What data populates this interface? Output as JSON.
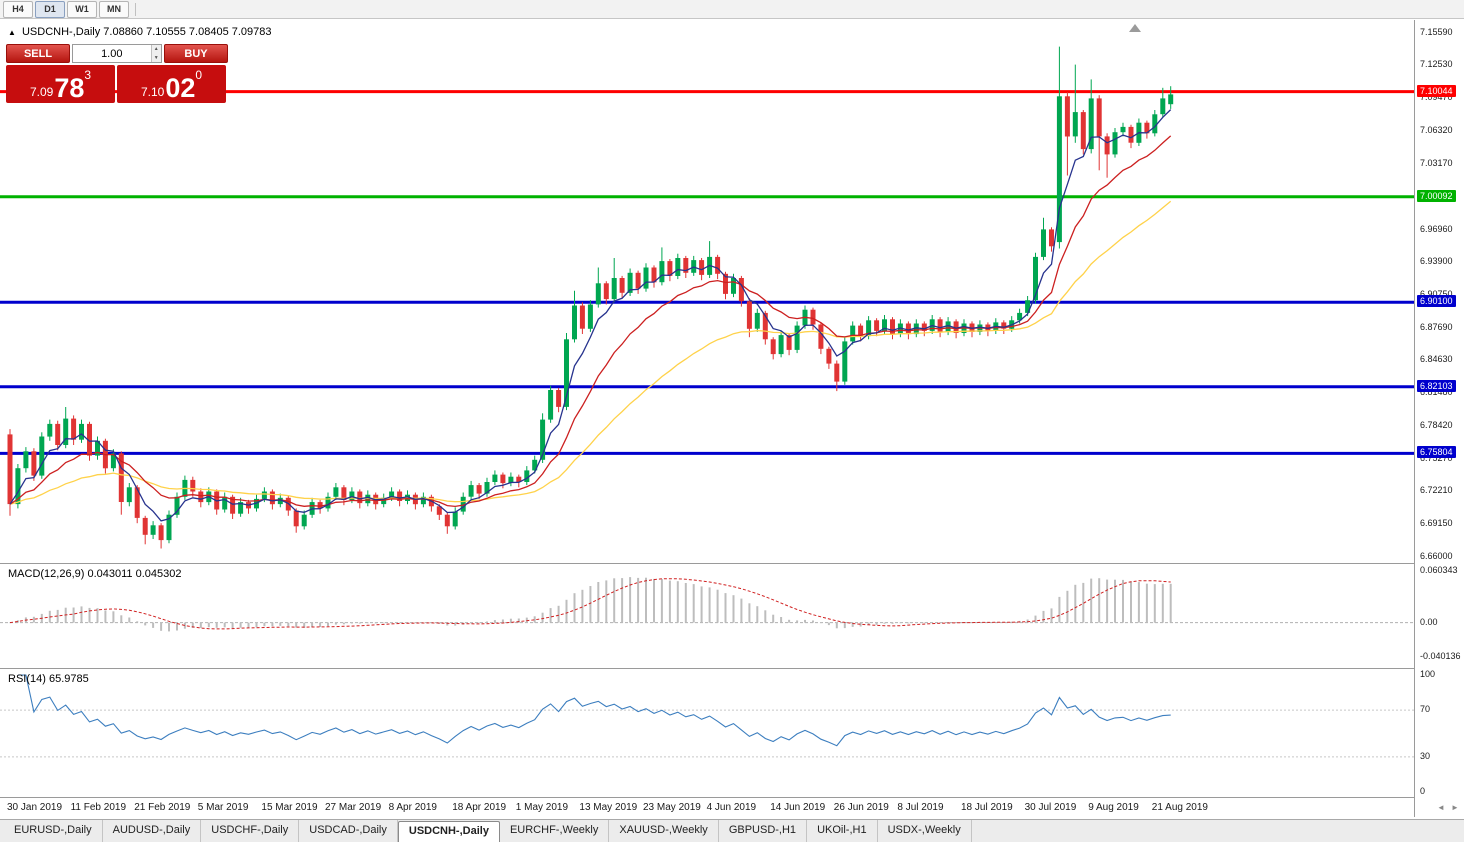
{
  "window": {
    "timeframes": [
      "H4",
      "D1",
      "W1",
      "MN"
    ],
    "active_timeframe": "D1"
  },
  "chart": {
    "marker": "▲",
    "symbol_title": "USDCNH-,Daily",
    "ohlc_text": "7.08860 7.10555 7.08405 7.09783"
  },
  "one_click": {
    "sell_label": "SELL",
    "buy_label": "BUY",
    "volume": "1.00",
    "spin_up": "▲",
    "spin_down": "▼",
    "sell_price": {
      "main": "7.09",
      "big": "78",
      "sup": "3"
    },
    "buy_price": {
      "main": "7.10",
      "big": "02",
      "sup": "0"
    }
  },
  "price_axis": {
    "max": 7.1559,
    "min": 6.66,
    "ticks": [
      "7.15590",
      "7.12530",
      "7.09470",
      "7.06320",
      "7.03170",
      "6.96960",
      "6.93900",
      "6.90750",
      "6.87690",
      "6.84630",
      "6.81480",
      "6.78420",
      "6.75270",
      "6.72210",
      "6.69150",
      "6.66000"
    ]
  },
  "levels": [
    {
      "value": 7.10044,
      "label": "7.10044",
      "color": "#fe0000"
    },
    {
      "value": 7.00092,
      "label": "7.00092",
      "color": "#00b200"
    },
    {
      "value": 6.901,
      "label": "6.90100",
      "color": "#0000cd"
    },
    {
      "value": 6.82103,
      "label": "6.82103",
      "color": "#0000cd"
    },
    {
      "value": 6.75804,
      "label": "6.75804",
      "color": "#0000cd"
    }
  ],
  "chart_data": {
    "type": "candlestick",
    "title": "USDCNH-,Daily",
    "symbol": "USDCNH",
    "timeframe": "Daily",
    "x_label_step": 8,
    "x_labels": [
      "30 Jan 2019",
      "11 Feb 2019",
      "21 Feb 2019",
      "5 Mar 2019",
      "15 Mar 2019",
      "27 Mar 2019",
      "8 Apr 2019",
      "18 Apr 2019",
      "1 May 2019",
      "13 May 2019",
      "23 May 2019",
      "4 Jun 2019",
      "14 Jun 2019",
      "26 Jun 2019",
      "8 Jul 2019",
      "18 Jul 2019",
      "30 Jul 2019",
      "9 Aug 2019",
      "21 Aug 2019"
    ],
    "colors": {
      "up": "#00a651",
      "down": "#e03434",
      "ma_fast": "#27338e",
      "ma_mid": "#cc2020",
      "ma_slow": "#ffd24a"
    },
    "ma_periods": {
      "fast": 5,
      "mid": 13,
      "slow": 34
    },
    "candles": [
      [
        6.776,
        6.781,
        6.699,
        6.71
      ],
      [
        6.71,
        6.748,
        6.706,
        6.744
      ],
      [
        6.744,
        6.764,
        6.74,
        6.76
      ],
      [
        6.76,
        6.763,
        6.732,
        6.737
      ],
      [
        6.737,
        6.778,
        6.734,
        6.774
      ],
      [
        6.774,
        6.79,
        6.77,
        6.786
      ],
      [
        6.786,
        6.789,
        6.761,
        6.766
      ],
      [
        6.766,
        6.802,
        6.763,
        6.791
      ],
      [
        6.791,
        6.794,
        6.766,
        6.771
      ],
      [
        6.771,
        6.79,
        6.768,
        6.786
      ],
      [
        6.786,
        6.788,
        6.751,
        6.756
      ],
      [
        6.756,
        6.774,
        6.752,
        6.77
      ],
      [
        6.77,
        6.772,
        6.739,
        6.744
      ],
      [
        6.744,
        6.762,
        6.741,
        6.758
      ],
      [
        6.758,
        6.76,
        6.7,
        6.712
      ],
      [
        6.712,
        6.73,
        6.708,
        6.726
      ],
      [
        6.726,
        6.728,
        6.692,
        6.697
      ],
      [
        6.697,
        6.699,
        6.672,
        6.681
      ],
      [
        6.681,
        6.694,
        6.677,
        6.69
      ],
      [
        6.69,
        6.692,
        6.668,
        6.676
      ],
      [
        6.676,
        6.704,
        6.673,
        6.7
      ],
      [
        6.7,
        6.721,
        6.697,
        6.717
      ],
      [
        6.717,
        6.737,
        6.714,
        6.733
      ],
      [
        6.733,
        6.736,
        6.717,
        6.722
      ],
      [
        6.722,
        6.725,
        6.707,
        6.712
      ],
      [
        6.712,
        6.726,
        6.709,
        6.722
      ],
      [
        6.722,
        6.724,
        6.7,
        6.705
      ],
      [
        6.705,
        6.721,
        6.702,
        6.717
      ],
      [
        6.717,
        6.719,
        6.696,
        6.701
      ],
      [
        6.701,
        6.716,
        6.698,
        6.712
      ],
      [
        6.712,
        6.714,
        6.701,
        6.706
      ],
      [
        6.706,
        6.719,
        6.703,
        6.715
      ],
      [
        6.715,
        6.726,
        6.712,
        6.722
      ],
      [
        6.722,
        6.724,
        6.705,
        6.71
      ],
      [
        6.71,
        6.72,
        6.707,
        6.716
      ],
      [
        6.716,
        6.718,
        6.699,
        6.704
      ],
      [
        6.704,
        6.706,
        6.683,
        6.689
      ],
      [
        6.689,
        6.704,
        6.686,
        6.7
      ],
      [
        6.7,
        6.716,
        6.697,
        6.712
      ],
      [
        6.712,
        6.714,
        6.701,
        6.706
      ],
      [
        6.706,
        6.721,
        6.703,
        6.717
      ],
      [
        6.717,
        6.73,
        6.714,
        6.726
      ],
      [
        6.726,
        6.728,
        6.709,
        6.714
      ],
      [
        6.714,
        6.726,
        6.711,
        6.722
      ],
      [
        6.722,
        6.724,
        6.706,
        6.711
      ],
      [
        6.711,
        6.723,
        6.708,
        6.719
      ],
      [
        6.719,
        6.721,
        6.705,
        6.71
      ],
      [
        6.71,
        6.72,
        6.707,
        6.716
      ],
      [
        6.716,
        6.726,
        6.713,
        6.722
      ],
      [
        6.722,
        6.724,
        6.708,
        6.713
      ],
      [
        6.713,
        6.723,
        6.71,
        6.719
      ],
      [
        6.719,
        6.721,
        6.705,
        6.71
      ],
      [
        6.71,
        6.721,
        6.707,
        6.717
      ],
      [
        6.717,
        6.719,
        6.703,
        6.708
      ],
      [
        6.708,
        6.71,
        6.695,
        6.7
      ],
      [
        6.7,
        6.702,
        6.682,
        6.689
      ],
      [
        6.689,
        6.707,
        6.686,
        6.703
      ],
      [
        6.703,
        6.721,
        6.7,
        6.717
      ],
      [
        6.717,
        6.732,
        6.714,
        6.728
      ],
      [
        6.728,
        6.73,
        6.715,
        6.72
      ],
      [
        6.72,
        6.735,
        6.717,
        6.731
      ],
      [
        6.731,
        6.742,
        6.728,
        6.738
      ],
      [
        6.738,
        6.74,
        6.725,
        6.73
      ],
      [
        6.73,
        6.74,
        6.727,
        6.736
      ],
      [
        6.736,
        6.738,
        6.726,
        6.731
      ],
      [
        6.731,
        6.746,
        6.728,
        6.742
      ],
      [
        6.742,
        6.756,
        6.739,
        6.752
      ],
      [
        6.752,
        6.796,
        6.749,
        6.79
      ],
      [
        6.79,
        6.822,
        6.787,
        6.818
      ],
      [
        6.818,
        6.82,
        6.797,
        6.802
      ],
      [
        6.802,
        6.872,
        6.799,
        6.866
      ],
      [
        6.866,
        6.912,
        6.863,
        6.898
      ],
      [
        6.898,
        6.901,
        6.871,
        6.876
      ],
      [
        6.876,
        6.903,
        6.873,
        6.899
      ],
      [
        6.899,
        6.934,
        6.896,
        6.919
      ],
      [
        6.919,
        6.921,
        6.899,
        6.904
      ],
      [
        6.904,
        6.943,
        6.901,
        6.924
      ],
      [
        6.924,
        6.926,
        6.905,
        6.91
      ],
      [
        6.91,
        6.933,
        6.907,
        6.929
      ],
      [
        6.929,
        6.931,
        6.909,
        6.914
      ],
      [
        6.914,
        6.938,
        6.911,
        6.934
      ],
      [
        6.934,
        6.936,
        6.915,
        6.92
      ],
      [
        6.92,
        6.953,
        6.917,
        6.94
      ],
      [
        6.94,
        6.942,
        6.921,
        6.926
      ],
      [
        6.926,
        6.947,
        6.923,
        6.943
      ],
      [
        6.943,
        6.945,
        6.924,
        6.929
      ],
      [
        6.929,
        6.945,
        6.926,
        6.941
      ],
      [
        6.941,
        6.943,
        6.922,
        6.927
      ],
      [
        6.927,
        6.959,
        6.924,
        6.944
      ],
      [
        6.944,
        6.946,
        6.923,
        6.928
      ],
      [
        6.928,
        6.93,
        6.904,
        6.909
      ],
      [
        6.909,
        6.928,
        6.906,
        6.924
      ],
      [
        6.924,
        6.926,
        6.897,
        6.902
      ],
      [
        6.902,
        6.905,
        6.868,
        6.876
      ],
      [
        6.876,
        6.895,
        6.873,
        6.891
      ],
      [
        6.891,
        6.893,
        6.861,
        6.866
      ],
      [
        6.866,
        6.868,
        6.847,
        6.852
      ],
      [
        6.852,
        6.874,
        6.849,
        6.87
      ],
      [
        6.87,
        6.872,
        6.851,
        6.856
      ],
      [
        6.856,
        6.883,
        6.853,
        6.879
      ],
      [
        6.879,
        6.898,
        6.876,
        6.894
      ],
      [
        6.894,
        6.896,
        6.875,
        6.88
      ],
      [
        6.88,
        6.882,
        6.852,
        6.857
      ],
      [
        6.857,
        6.859,
        6.838,
        6.843
      ],
      [
        6.843,
        6.846,
        6.817,
        6.826
      ],
      [
        6.826,
        6.868,
        6.823,
        6.864
      ],
      [
        6.864,
        6.883,
        6.861,
        6.879
      ],
      [
        6.879,
        6.881,
        6.864,
        6.869
      ],
      [
        6.869,
        6.888,
        6.866,
        6.884
      ],
      [
        6.884,
        6.886,
        6.869,
        6.874
      ],
      [
        6.874,
        6.889,
        6.871,
        6.885
      ],
      [
        6.885,
        6.887,
        6.866,
        6.871
      ],
      [
        6.871,
        6.885,
        6.868,
        6.881
      ],
      [
        6.881,
        6.883,
        6.866,
        6.871
      ],
      [
        6.871,
        6.885,
        6.868,
        6.881
      ],
      [
        6.881,
        6.883,
        6.869,
        6.874
      ],
      [
        6.874,
        6.889,
        6.871,
        6.885
      ],
      [
        6.885,
        6.887,
        6.868,
        6.873
      ],
      [
        6.873,
        6.887,
        6.87,
        6.883
      ],
      [
        6.883,
        6.885,
        6.867,
        6.872
      ],
      [
        6.872,
        6.885,
        6.869,
        6.881
      ],
      [
        6.881,
        6.883,
        6.868,
        6.873
      ],
      [
        6.873,
        6.884,
        6.87,
        6.88
      ],
      [
        6.88,
        6.882,
        6.869,
        6.874
      ],
      [
        6.874,
        6.886,
        6.871,
        6.882
      ],
      [
        6.882,
        6.884,
        6.871,
        6.876
      ],
      [
        6.876,
        6.888,
        6.873,
        6.884
      ],
      [
        6.884,
        6.895,
        6.881,
        6.891
      ],
      [
        6.891,
        6.907,
        6.888,
        6.903
      ],
      [
        6.903,
        6.948,
        6.9,
        6.944
      ],
      [
        6.944,
        6.981,
        6.941,
        6.97
      ],
      [
        6.97,
        6.972,
        6.949,
        6.954
      ],
      [
        6.958,
        7.143,
        6.952,
        7.096
      ],
      [
        7.096,
        7.1,
        7.021,
        7.058
      ],
      [
        7.058,
        7.126,
        7.052,
        7.081
      ],
      [
        7.081,
        7.083,
        7.041,
        7.046
      ],
      [
        7.046,
        7.112,
        7.042,
        7.094
      ],
      [
        7.094,
        7.097,
        7.026,
        7.058
      ],
      [
        7.058,
        7.061,
        7.019,
        7.041
      ],
      [
        7.041,
        7.066,
        7.038,
        7.062
      ],
      [
        7.062,
        7.071,
        7.058,
        7.067
      ],
      [
        7.067,
        7.069,
        7.047,
        7.052
      ],
      [
        7.052,
        7.075,
        7.049,
        7.071
      ],
      [
        7.071,
        7.073,
        7.056,
        7.061
      ],
      [
        7.061,
        7.083,
        7.058,
        7.079
      ],
      [
        7.079,
        7.104,
        7.076,
        7.094
      ],
      [
        7.0886,
        7.10555,
        7.08405,
        7.09783
      ]
    ]
  },
  "macd_pane": {
    "label": "MACD(12,26,9) 0.043011 0.045302",
    "params": [
      12,
      26,
      9
    ],
    "axis_max": 0.060343,
    "axis_min": -0.040136,
    "ticks": [
      {
        "v": 0.060343,
        "t": "0.060343"
      },
      {
        "v": 0,
        "t": "0.00"
      },
      {
        "v": -0.040136,
        "t": "-0.040136"
      }
    ],
    "histogram_color": "#bdbdbd",
    "signal_color": "#d02020"
  },
  "rsi_pane": {
    "label": "RSI(14) 65.9785",
    "period": 14,
    "ticks": [
      {
        "v": 100,
        "t": "100"
      },
      {
        "v": 70,
        "t": "70"
      },
      {
        "v": 30,
        "t": "30"
      },
      {
        "v": 0,
        "t": "0"
      }
    ],
    "levels": [
      70,
      30
    ],
    "line_color": "#3c7ebf"
  },
  "time_nav": {
    "left": "◄",
    "right": "►"
  },
  "tabs": [
    {
      "label": "EURUSD-,Daily",
      "active": false
    },
    {
      "label": "AUDUSD-,Daily",
      "active": false
    },
    {
      "label": "USDCHF-,Daily",
      "active": false
    },
    {
      "label": "USDCAD-,Daily",
      "active": false
    },
    {
      "label": "USDCNH-,Daily",
      "active": true
    },
    {
      "label": "EURCHF-,Weekly",
      "active": false
    },
    {
      "label": "XAUUSD-,Weekly",
      "active": false
    },
    {
      "label": "GBPUSD-,H1",
      "active": false
    },
    {
      "label": "UKOil-,H1",
      "active": false
    },
    {
      "label": "USDX-,Weekly",
      "active": false
    }
  ]
}
